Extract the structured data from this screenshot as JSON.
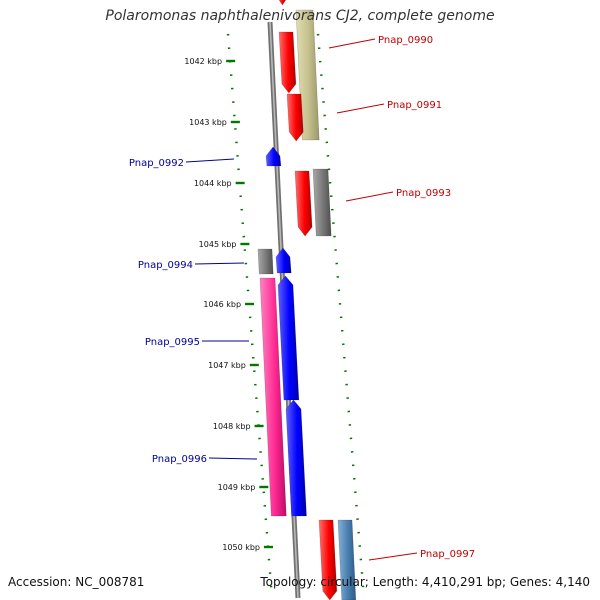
{
  "title": "Polaromonas naphthalenivorans CJ2, complete genome",
  "accession": "Accession: NC_008781",
  "summary": "Topology: circular; Length: 4,410,291 bp; Genes: 4,140",
  "colors": {
    "forward_gene": "#ff0000",
    "reverse_gene": "#0000ff",
    "forward_label": "#c00000",
    "reverse_label": "#000099",
    "backbone": "#808080",
    "dotted_axis": "#007700",
    "olive": "#c4bf8c",
    "gray": "#777777",
    "pink": "#ff2b93",
    "steelblue": "#4a7fb0"
  },
  "ticks": [
    {
      "label": "1042 kbp"
    },
    {
      "label": "1043 kbp"
    },
    {
      "label": "1044 kbp"
    },
    {
      "label": "1045 kbp"
    },
    {
      "label": "1046 kbp"
    },
    {
      "label": "1047 kbp"
    },
    {
      "label": "1048 kbp"
    },
    {
      "label": "1049 kbp"
    },
    {
      "label": "1050 kbp"
    }
  ],
  "genes": [
    {
      "name": "Pnap_0990",
      "strand": "forward"
    },
    {
      "name": "Pnap_0991",
      "strand": "forward"
    },
    {
      "name": "Pnap_0992",
      "strand": "reverse"
    },
    {
      "name": "Pnap_0993",
      "strand": "forward"
    },
    {
      "name": "Pnap_0994",
      "strand": "reverse"
    },
    {
      "name": "Pnap_0995",
      "strand": "reverse"
    },
    {
      "name": "Pnap_0996",
      "strand": "reverse"
    },
    {
      "name": "Pnap_0997",
      "strand": "forward"
    }
  ]
}
